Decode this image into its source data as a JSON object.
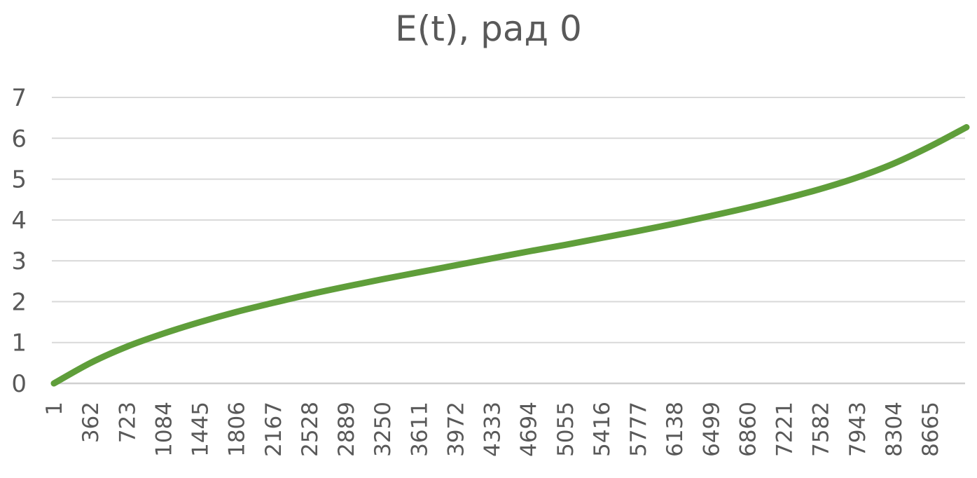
{
  "chart_data": {
    "type": "line",
    "title": "E(t), рад 0",
    "xlabel": "",
    "ylabel": "",
    "ylim": [
      0,
      7
    ],
    "yticks": [
      "0",
      "1",
      "2",
      "3",
      "4",
      "5",
      "6",
      "7"
    ],
    "xlim": [
      1,
      9025
    ],
    "xticks": [
      "1",
      "362",
      "723",
      "1084",
      "1445",
      "1806",
      "2167",
      "2528",
      "2889",
      "3250",
      "3611",
      "3972",
      "4333",
      "4694",
      "5055",
      "5416",
      "5777",
      "6138",
      "6499",
      "6860",
      "7221",
      "7582",
      "7943",
      "8304",
      "8665"
    ],
    "grid": true,
    "legend": "none",
    "series": [
      {
        "name": "E(t)",
        "color": "#5f9e3a",
        "x": [
          1,
          362,
          723,
          1084,
          1445,
          1806,
          2167,
          2528,
          2889,
          3250,
          3611,
          3972,
          4333,
          4694,
          5055,
          5416,
          5777,
          6138,
          6499,
          6860,
          7221,
          7582,
          7943,
          8304,
          8665,
          9025
        ],
        "values": [
          0.0,
          0.5,
          0.9,
          1.22,
          1.5,
          1.75,
          1.97,
          2.18,
          2.37,
          2.55,
          2.72,
          2.89,
          3.06,
          3.23,
          3.39,
          3.56,
          3.73,
          3.91,
          4.1,
          4.3,
          4.52,
          4.76,
          5.04,
          5.38,
          5.8,
          6.27
        ]
      }
    ]
  }
}
